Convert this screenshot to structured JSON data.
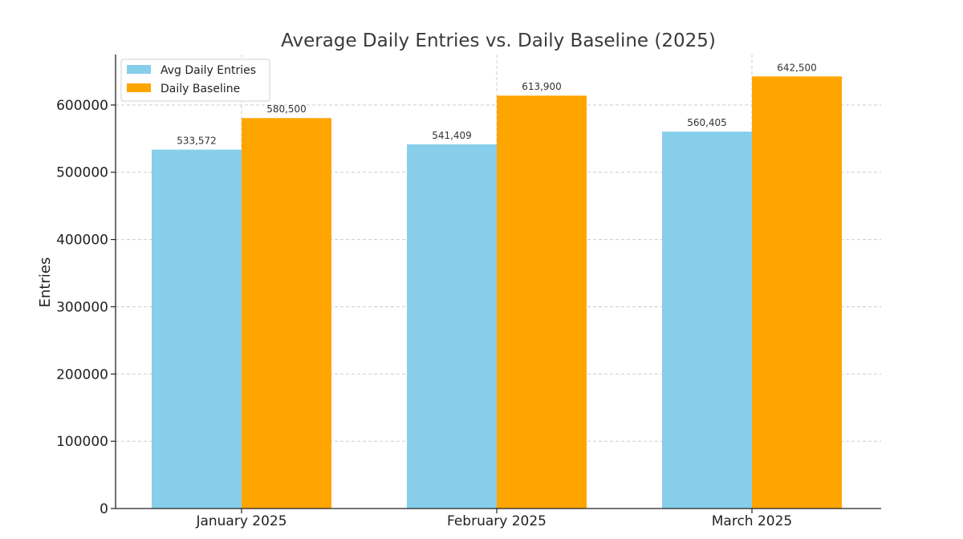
{
  "chart_data": {
    "type": "bar",
    "title": "Average Daily Entries vs. Daily Baseline (2025)",
    "xlabel": "",
    "ylabel": "Entries",
    "categories": [
      "January 2025",
      "February 2025",
      "March 2025"
    ],
    "series": [
      {
        "name": "Avg Daily Entries",
        "values": [
          533572,
          541409,
          560405
        ],
        "labels": [
          "533,572",
          "541,409",
          "560,405"
        ],
        "color": "#87CEEB"
      },
      {
        "name": "Daily Baseline",
        "values": [
          580500,
          613900,
          642500
        ],
        "labels": [
          "580,500",
          "613,900",
          "642,500"
        ],
        "color": "#FFA500"
      }
    ],
    "ylim": [
      0,
      675000
    ],
    "yticks": [
      0,
      100000,
      200000,
      300000,
      400000,
      500000,
      600000
    ],
    "ytick_labels": [
      "0",
      "100000",
      "200000",
      "300000",
      "400000",
      "500000",
      "600000"
    ],
    "grid": true,
    "legend_position": "top-left"
  }
}
